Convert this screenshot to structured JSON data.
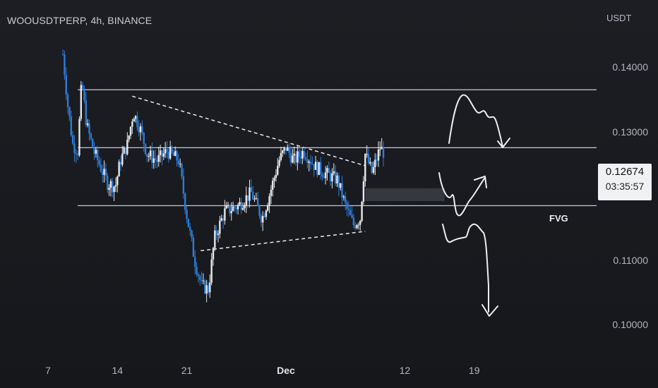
{
  "header": {
    "title": "WOOUSDTPERP, 4h, BINANCE"
  },
  "quote_currency": "USDT",
  "current_price": "0.12674",
  "countdown": "03:35:57",
  "fvg_label": "FVG",
  "colors": {
    "background": "#1c1e23",
    "candle_up": "#e6e8ec",
    "candle_down": "#2e7bd6",
    "level_line": "#c8cbd2",
    "fvg_zone": "#3a3c42"
  },
  "chart_data": {
    "type": "candlestick",
    "title": "WOOUSDTPERP, 4h, BINANCE",
    "y_ticks": [
      "0.14000",
      "0.13000",
      "0.12000",
      "0.11000",
      "0.10000"
    ],
    "ylim": [
      0.0995,
      0.1465
    ],
    "x_ticks": [
      {
        "label": "7",
        "day": 7
      },
      {
        "label": "14",
        "day": 14
      },
      {
        "label": "21",
        "day": 21
      },
      {
        "label": "Dec",
        "day": 31
      },
      {
        "label": "12",
        "day": 43
      },
      {
        "label": "19",
        "day": 50
      }
    ],
    "price_path": [
      {
        "day": 8.5,
        "price": 0.142
      },
      {
        "day": 9.0,
        "price": 0.134
      },
      {
        "day": 9.5,
        "price": 0.128
      },
      {
        "day": 10.0,
        "price": 0.127
      },
      {
        "day": 10.4,
        "price": 0.138
      },
      {
        "day": 10.9,
        "price": 0.131
      },
      {
        "day": 11.6,
        "price": 0.127
      },
      {
        "day": 12.3,
        "price": 0.1245
      },
      {
        "day": 13.0,
        "price": 0.122
      },
      {
        "day": 13.8,
        "price": 0.1215
      },
      {
        "day": 14.3,
        "price": 0.1255
      },
      {
        "day": 15.0,
        "price": 0.128
      },
      {
        "day": 15.6,
        "price": 0.133
      },
      {
        "day": 16.3,
        "price": 0.1305
      },
      {
        "day": 17.0,
        "price": 0.1265
      },
      {
        "day": 18.0,
        "price": 0.1255
      },
      {
        "day": 19.0,
        "price": 0.127
      },
      {
        "day": 20.2,
        "price": 0.1255
      },
      {
        "day": 21.0,
        "price": 0.117
      },
      {
        "day": 21.8,
        "price": 0.11
      },
      {
        "day": 22.5,
        "price": 0.106
      },
      {
        "day": 23.2,
        "price": 0.1055
      },
      {
        "day": 23.8,
        "price": 0.1135
      },
      {
        "day": 24.8,
        "price": 0.1175
      },
      {
        "day": 26.2,
        "price": 0.1185
      },
      {
        "day": 27.5,
        "price": 0.1205
      },
      {
        "day": 28.6,
        "price": 0.1165
      },
      {
        "day": 29.4,
        "price": 0.1205
      },
      {
        "day": 30.3,
        "price": 0.1255
      },
      {
        "day": 31.0,
        "price": 0.1275
      },
      {
        "day": 31.8,
        "price": 0.1255
      },
      {
        "day": 32.8,
        "price": 0.127
      },
      {
        "day": 34.0,
        "price": 0.1245
      },
      {
        "day": 35.0,
        "price": 0.1235
      },
      {
        "day": 36.2,
        "price": 0.1225
      },
      {
        "day": 37.0,
        "price": 0.1185
      },
      {
        "day": 37.8,
        "price": 0.1155
      },
      {
        "day": 38.5,
        "price": 0.1165
      },
      {
        "day": 39.0,
        "price": 0.1265
      },
      {
        "day": 39.7,
        "price": 0.1235
      },
      {
        "day": 40.5,
        "price": 0.1275
      },
      {
        "day": 40.9,
        "price": 0.1267
      }
    ],
    "levels": [
      0.1365,
      0.1275,
      0.1185
    ],
    "fvg_zone": [
      0.1192,
      0.1212
    ],
    "trendlines": [
      {
        "from": {
          "day": 15.5,
          "price": 0.1355
        },
        "to": {
          "day": 39.0,
          "price": 0.1247
        }
      },
      {
        "from": {
          "day": 22.4,
          "price": 0.1115
        },
        "to": {
          "day": 39.0,
          "price": 0.1145
        }
      }
    ],
    "grid": false
  }
}
